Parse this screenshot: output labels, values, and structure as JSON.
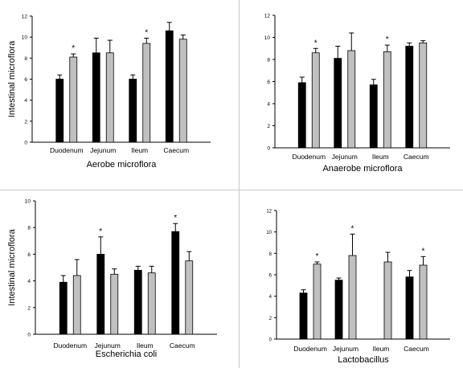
{
  "chart_data": [
    {
      "type": "bar",
      "title": "",
      "xlabel": "Aerobe microflora",
      "ylabel": "Intestinal microflora",
      "ylim": [
        0,
        12
      ],
      "yticks": [
        "0",
        "2",
        "4",
        "6",
        "8",
        "10",
        "12"
      ],
      "categories": [
        "Duodenum",
        "Jejunum",
        "Ileum",
        "Caecum"
      ],
      "series": [
        {
          "color": "#000000",
          "values": [
            6.0,
            8.5,
            6.0,
            10.6
          ],
          "errors": [
            0.4,
            1.4,
            0.4,
            0.8
          ],
          "marks": [
            "",
            "",
            "",
            ""
          ]
        },
        {
          "color": "#c0c0c0",
          "values": [
            8.1,
            8.5,
            9.4,
            9.8
          ],
          "errors": [
            0.3,
            1.2,
            0.5,
            0.4
          ],
          "marks": [
            "*",
            "",
            "*",
            ""
          ]
        }
      ],
      "grid": false
    },
    {
      "type": "bar",
      "title": "",
      "xlabel": "Anaerobe microflora",
      "ylabel": "",
      "ylim": [
        0,
        12
      ],
      "yticks": [
        "0",
        "2",
        "4",
        "6",
        "8",
        "10",
        "12"
      ],
      "categories": [
        "Duodenum",
        "Jejunum",
        "Ileum",
        "Caecum"
      ],
      "series": [
        {
          "color": "#000000",
          "values": [
            5.9,
            8.1,
            5.7,
            9.2
          ],
          "errors": [
            0.5,
            1.1,
            0.5,
            0.3
          ],
          "marks": [
            "",
            "",
            "",
            ""
          ]
        },
        {
          "color": "#c0c0c0",
          "values": [
            8.6,
            8.8,
            8.7,
            9.5
          ],
          "errors": [
            0.4,
            1.6,
            0.6,
            0.2
          ],
          "marks": [
            "*",
            "",
            "*",
            ""
          ]
        }
      ],
      "grid": false
    },
    {
      "type": "bar",
      "title": "",
      "xlabel": "Escherichia coli",
      "ylabel": "Intestinal microflora",
      "ylim": [
        0,
        10
      ],
      "yticks": [
        "0",
        "2",
        "4",
        "6",
        "8",
        "10"
      ],
      "categories": [
        "Duodenum",
        "Jejunum",
        "Ileum",
        "Caecum"
      ],
      "series": [
        {
          "color": "#000000",
          "values": [
            3.9,
            6.0,
            4.8,
            7.7
          ],
          "errors": [
            0.5,
            1.3,
            0.3,
            0.6
          ],
          "marks": [
            "",
            "*",
            "",
            "*"
          ]
        },
        {
          "color": "#c0c0c0",
          "values": [
            4.4,
            4.5,
            4.6,
            5.5
          ],
          "errors": [
            1.2,
            0.4,
            0.5,
            0.7
          ],
          "marks": [
            "",
            "",
            "",
            ""
          ]
        }
      ],
      "grid": false
    },
    {
      "type": "bar",
      "title": "",
      "xlabel": "Lactobacillus",
      "ylabel": "",
      "ylim": [
        0,
        12
      ],
      "yticks": [
        "0",
        "2",
        "4",
        "6",
        "8",
        "10",
        "12"
      ],
      "categories": [
        "Duodenum",
        "Jejunum",
        "Ileum",
        "Caecum"
      ],
      "series": [
        {
          "color": "#000000",
          "values": [
            4.3,
            5.5,
            null,
            5.8
          ],
          "errors": [
            0.3,
            0.2,
            0,
            0.6
          ],
          "marks": [
            "",
            "",
            "",
            ""
          ]
        },
        {
          "color": "#c0c0c0",
          "values": [
            7.0,
            7.8,
            7.2,
            6.9
          ],
          "errors": [
            0.2,
            2.0,
            0.9,
            0.8
          ],
          "marks": [
            "*",
            "*",
            "",
            "*"
          ]
        }
      ],
      "grid": false
    }
  ]
}
